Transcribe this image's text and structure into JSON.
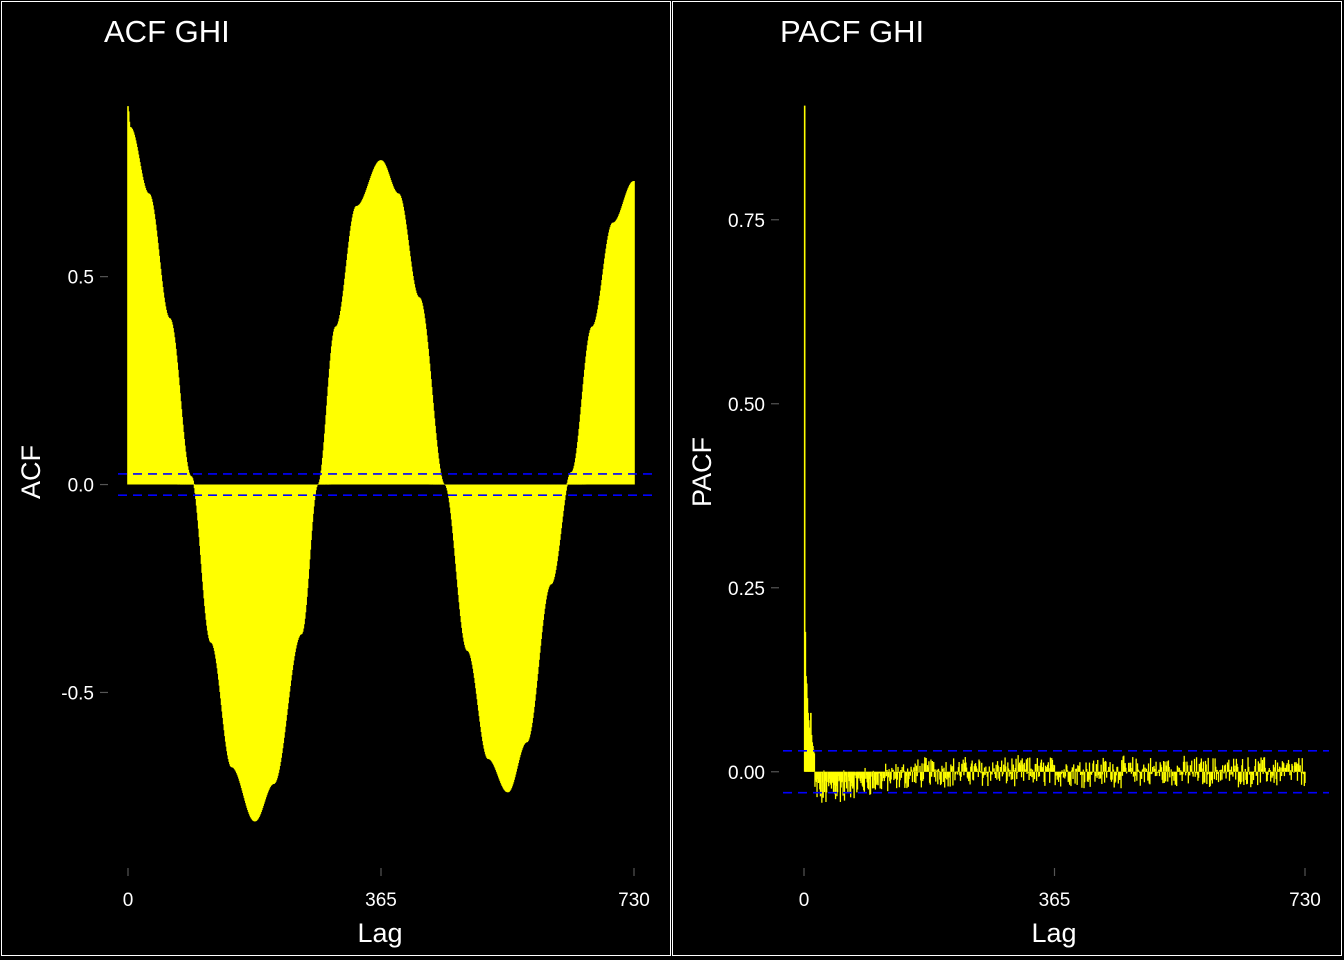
{
  "chart_data": [
    {
      "id": "acf",
      "type": "bar",
      "title": "ACF GHI",
      "xlabel": "Lag",
      "ylabel": "ACF",
      "xlim": [
        0,
        730
      ],
      "ylim": [
        -0.85,
        0.92
      ],
      "xticks": [
        0,
        365,
        730
      ],
      "xtick_labels": [
        "0",
        "365",
        "730"
      ],
      "yticks": [
        0.5,
        0.0,
        -0.5
      ],
      "ytick_labels": [
        "0.5",
        "0.0",
        "-0.5"
      ],
      "confidence_bound": 0.0256,
      "series_description": "annual cycle: 0.91 at lag 0, near 0 at lag 91, -0.81 at lag 183, 0.78 at lag 365, -0.74 at lag 548, 0.73 at lag 730",
      "knots": [
        [
          0,
          0.91
        ],
        [
          3,
          0.86
        ],
        [
          30,
          0.7
        ],
        [
          60,
          0.4
        ],
        [
          91,
          0.02
        ],
        [
          120,
          -0.38
        ],
        [
          150,
          -0.68
        ],
        [
          183,
          -0.81
        ],
        [
          210,
          -0.72
        ],
        [
          250,
          -0.36
        ],
        [
          274,
          0.0
        ],
        [
          300,
          0.38
        ],
        [
          330,
          0.67
        ],
        [
          365,
          0.78
        ],
        [
          390,
          0.7
        ],
        [
          420,
          0.45
        ],
        [
          457,
          0.0
        ],
        [
          490,
          -0.4
        ],
        [
          520,
          -0.66
        ],
        [
          548,
          -0.74
        ],
        [
          575,
          -0.62
        ],
        [
          610,
          -0.24
        ],
        [
          640,
          0.03
        ],
        [
          670,
          0.38
        ],
        [
          700,
          0.63
        ],
        [
          730,
          0.73
        ]
      ],
      "bar_color": "#ffff00",
      "bound_color": "#0000ff"
    },
    {
      "id": "pacf",
      "type": "bar",
      "title": "PACF GHI",
      "xlabel": "Lag",
      "ylabel": "PACF",
      "xlim": [
        0,
        730
      ],
      "ylim": [
        -0.09,
        0.91
      ],
      "xticks": [
        0,
        365,
        730
      ],
      "xtick_labels": [
        "0",
        "365",
        "730"
      ],
      "yticks": [
        0.75,
        0.5,
        0.25,
        0.0
      ],
      "ytick_labels": [
        "0.75",
        "0.50",
        "0.25",
        "0.00"
      ],
      "confidence_bound": 0.0285,
      "spikes": [
        [
          1,
          0.905
        ],
        [
          2,
          0.19
        ],
        [
          3,
          0.13
        ],
        [
          4,
          0.12
        ],
        [
          5,
          0.1
        ],
        [
          6,
          0.08
        ],
        [
          7,
          0.07
        ],
        [
          8,
          0.06
        ],
        [
          9,
          0.05
        ],
        [
          10,
          0.08
        ],
        [
          11,
          0.05
        ],
        [
          12,
          0.04
        ],
        [
          13,
          0.035
        ],
        [
          14,
          0.03
        ],
        [
          15,
          0.025
        ]
      ],
      "noise": {
        "start_lag": 16,
        "start_mean": -0.025,
        "mean_lag_zero": 180,
        "amplitude": 0.018
      },
      "bar_color": "#ffff00",
      "bound_color": "#0000ff"
    }
  ]
}
